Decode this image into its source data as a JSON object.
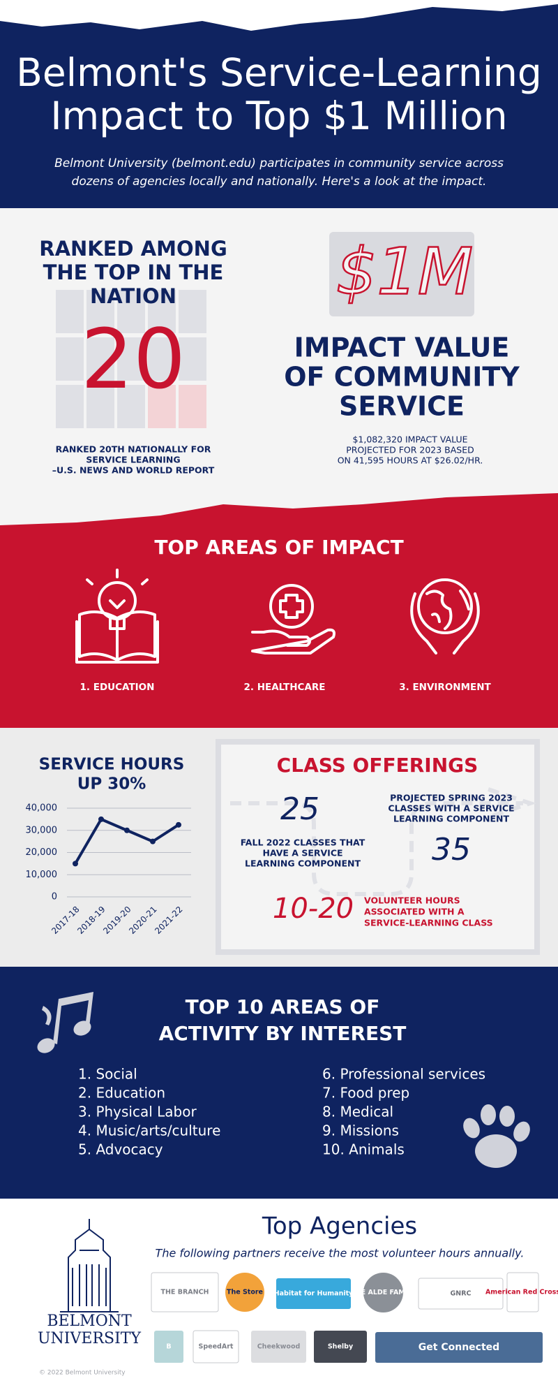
{
  "header": {
    "title": [
      "Belmont's Service-Learning",
      "Impact to Top $1 Million"
    ],
    "subtitle": [
      "Belmont University (belmont.edu) participates in community service across",
      "dozens of agencies locally and nationally. Here's a look at the impact."
    ]
  },
  "ranking": {
    "heading": [
      "RANKED AMONG",
      "THE TOP IN THE",
      "NATION"
    ],
    "rank": "20",
    "note": [
      "RANKED 20TH NATIONALLY FOR",
      "SERVICE LEARNING",
      "–U.S. NEWS AND WORLD REPORT"
    ]
  },
  "impact_value": {
    "amount": "$1M",
    "heading": [
      "IMPACT VALUE",
      "OF COMMUNITY",
      "SERVICE"
    ],
    "note": [
      "$1,082,320 IMPACT VALUE",
      "PROJECTED FOR 2023 BASED",
      "ON 41,595 HOURS AT $26.02/HR."
    ]
  },
  "top_areas": {
    "title": "TOP AREAS OF IMPACT",
    "items": [
      "1. EDUCATION",
      "2. HEALTHCARE",
      "3. ENVIRONMENT"
    ]
  },
  "service_hours": {
    "title": [
      "SERVICE HOURS",
      "UP 30%"
    ],
    "chart": {
      "type": "line",
      "categories": [
        "2017-18",
        "2018-19",
        "2019-20",
        "2020-21",
        "2021-22"
      ],
      "values": [
        15000,
        35000,
        30000,
        25000,
        32500
      ],
      "color": "#0f2360",
      "ylim": [
        0,
        40000
      ],
      "yticks": [
        0,
        {
          "value": 10000,
          "label": "10,000"
        },
        {
          "value": 20000,
          "label": "20,000"
        },
        {
          "value": 30000,
          "label": "30,000"
        },
        {
          "value": 40000,
          "label": "40,000"
        }
      ],
      "grid": true
    }
  },
  "class_offerings": {
    "title": "CLASS OFFERINGS",
    "fall_count": "25",
    "fall_label": [
      "FALL 2022 CLASSES THAT",
      "HAVE A SERVICE",
      "LEARNING COMPONENT"
    ],
    "spring_count": "35",
    "spring_label": [
      "PROJECTED SPRING 2023",
      "CLASSES WITH A SERVICE",
      "LEARNING COMPONENT"
    ],
    "hours": "10-20",
    "hours_label": [
      "VOLUNTEER HOURS",
      "ASSOCIATED WITH A",
      "SERVICE-LEARNING CLASS"
    ]
  },
  "activities": {
    "title": [
      "TOP 10 AREAS OF",
      "ACTIVITY BY INTEREST"
    ],
    "items": [
      "1. Social",
      "2. Education",
      "3. Physical Labor",
      "4. Music/arts/culture",
      "5. Advocacy",
      "6. Professional services",
      "7. Food prep",
      "8. Medical",
      "9. Missions",
      "10. Animals"
    ]
  },
  "agencies": {
    "title": "Top Agencies",
    "subtitle": "The following partners receive the most volunteer hours annually.",
    "logos": [
      "THE BRANCH",
      "The Store",
      "Habitat for Humanity",
      "THE ALDE FAMILY",
      "GNRC",
      "American Red Cross",
      "B",
      "SpeedArt",
      "Cheekwood",
      "Shelby",
      "Get Connected"
    ]
  },
  "footer": {
    "university": [
      "BELMONT",
      "UNIVERSITY"
    ],
    "copyright": "© 2022 Belmont University"
  }
}
